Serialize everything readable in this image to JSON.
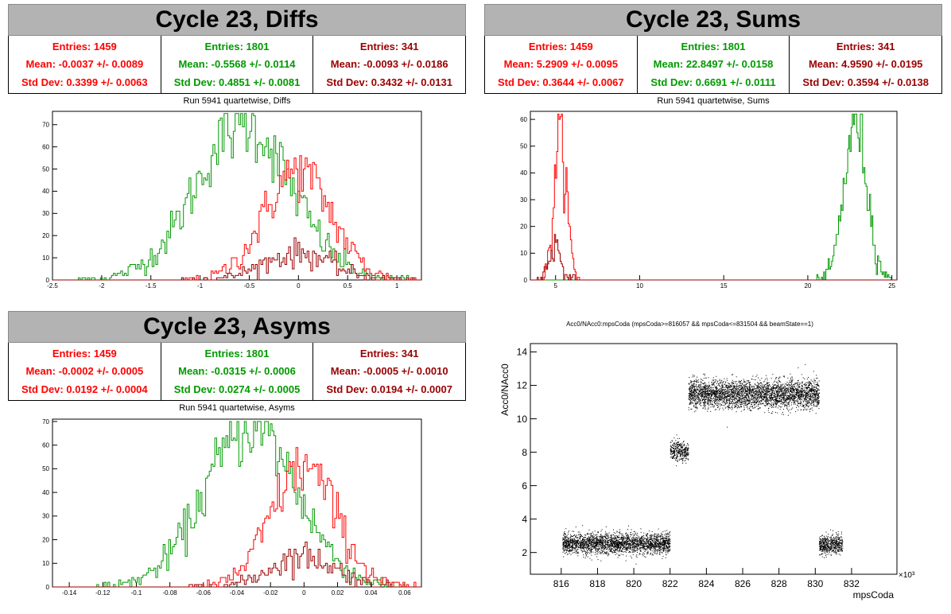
{
  "panels": [
    {
      "title": "Cycle 23, Diffs",
      "run_label": "Run 5941 quartetwise, Diffs",
      "stats": [
        {
          "entries": "Entries: 1459",
          "mean": "Mean: -0.0037 +/- 0.0089",
          "std": "Std Dev: 0.3399 +/- 0.0063"
        },
        {
          "entries": "Entries: 1801",
          "mean": "Mean: -0.5568 +/- 0.0114",
          "std": "Std Dev: 0.4851 +/- 0.0081"
        },
        {
          "entries": "Entries: 341",
          "mean": "Mean: -0.0093 +/- 0.0186",
          "std": "Std Dev: 0.3432 +/- 0.0131"
        }
      ]
    },
    {
      "title": "Cycle 23, Sums",
      "run_label": "Run 5941 quartetwise, Sums",
      "stats": [
        {
          "entries": "Entries: 1459",
          "mean": "Mean: 5.2909 +/- 0.0095",
          "std": "Std Dev: 0.3644 +/- 0.0067"
        },
        {
          "entries": "Entries: 1801",
          "mean": "Mean: 22.8497 +/- 0.0158",
          "std": "Std Dev: 0.6691 +/- 0.0111"
        },
        {
          "entries": "Entries: 341",
          "mean": "Mean: 4.9590 +/- 0.0195",
          "std": "Std Dev: 0.3594 +/- 0.0138"
        }
      ]
    },
    {
      "title": "Cycle 23, Asyms",
      "run_label": "Run 5941 quartetwise, Asyms",
      "stats": [
        {
          "entries": "Entries: 1459",
          "mean": "Mean: -0.0002 +/- 0.0005",
          "std": "Std Dev: 0.0192 +/- 0.0004"
        },
        {
          "entries": "Entries: 1801",
          "mean": "Mean: -0.0315 +/- 0.0006",
          "std": "Std Dev: 0.0274 +/- 0.0005"
        },
        {
          "entries": "Entries: 341",
          "mean": "Mean: -0.0005 +/- 0.0010",
          "std": "Std Dev: 0.0194 +/- 0.0007"
        }
      ]
    }
  ],
  "colors": {
    "red": "#ff0000",
    "green": "#009900",
    "dark_red": "#990000",
    "title_bg": "#b3b3b3"
  },
  "chart_data": [
    {
      "type": "histogram",
      "xlim": [
        -2.5,
        1.25
      ],
      "ylim": [
        0,
        76
      ],
      "xticks": [
        "-2.5",
        "-2",
        "-1.5",
        "-1",
        "-0.5",
        "0",
        "0.5",
        "1"
      ],
      "yticks": [
        "0",
        "10",
        "20",
        "30",
        "40",
        "50",
        "60",
        "70"
      ],
      "series": [
        {
          "color": "#009900",
          "entries": 1801,
          "mean": -0.5568,
          "std": 0.4851,
          "peak": 70
        },
        {
          "color": "#ff0000",
          "entries": 1459,
          "mean": -0.0037,
          "std": 0.3399,
          "peak": 49
        },
        {
          "color": "#990000",
          "entries": 341,
          "mean": -0.0093,
          "std": 0.3432,
          "peak": 12
        }
      ]
    },
    {
      "type": "histogram",
      "xlim": [
        3.5,
        25.3
      ],
      "ylim": [
        0,
        63
      ],
      "xticks": [
        "5",
        "10",
        "15",
        "20",
        "25"
      ],
      "yticks": [
        "0",
        "10",
        "20",
        "30",
        "40",
        "50",
        "60"
      ],
      "series": [
        {
          "color": "#009900",
          "entries": 1801,
          "mean": 22.8497,
          "std": 0.6691,
          "peak": 60
        },
        {
          "color": "#ff0000",
          "entries": 1459,
          "mean": 5.2909,
          "std": 0.3644,
          "peak": 55
        },
        {
          "color": "#990000",
          "entries": 341,
          "mean": 4.959,
          "std": 0.3594,
          "peak": 13
        }
      ]
    },
    {
      "type": "histogram",
      "xlim": [
        -0.15,
        0.07
      ],
      "ylim": [
        0,
        71
      ],
      "xticks": [
        "-0.14",
        "-0.12",
        "-0.1",
        "-0.08",
        "-0.06",
        "-0.04",
        "-0.02",
        "0",
        "0.02",
        "0.04",
        "0.06"
      ],
      "yticks": [
        "0",
        "10",
        "20",
        "30",
        "40",
        "50",
        "60",
        "70"
      ],
      "series": [
        {
          "color": "#009900",
          "entries": 1801,
          "mean": -0.0315,
          "std": 0.0274,
          "peak": 68
        },
        {
          "color": "#ff0000",
          "entries": 1459,
          "mean": -0.0002,
          "std": 0.0192,
          "peak": 51
        },
        {
          "color": "#990000",
          "entries": 341,
          "mean": -0.0005,
          "std": 0.0194,
          "peak": 13
        }
      ]
    },
    {
      "type": "scatter",
      "title": "Acc0/NAcc0:mpsCoda (mpsCoda>=816057 && mpsCoda<=831504 && beamState==1)",
      "xlabel": "mpsCoda",
      "ylabel": "Acc0/NAcc0",
      "xexp": "×10³",
      "xlim": [
        814.3,
        834.5
      ],
      "ylim": [
        0.7,
        14.5
      ],
      "xticks": [
        "816",
        "818",
        "820",
        "822",
        "824",
        "826",
        "828",
        "830",
        "832"
      ],
      "yticks": [
        "2",
        "4",
        "6",
        "8",
        "10",
        "12",
        "14"
      ],
      "clusters": [
        {
          "x": [
            816.06,
            822.0
          ],
          "y_mean": 2.55,
          "y_spread": 0.55,
          "n": 2600
        },
        {
          "x": [
            822.0,
            823.0
          ],
          "y_mean": 8.1,
          "y_spread": 0.55,
          "n": 350
        },
        {
          "x": [
            823.0,
            830.2
          ],
          "y_mean": 11.5,
          "y_spread": 0.75,
          "n": 3400
        },
        {
          "x": [
            830.2,
            831.5
          ],
          "y_mean": 2.5,
          "y_spread": 0.5,
          "n": 550
        }
      ]
    }
  ]
}
